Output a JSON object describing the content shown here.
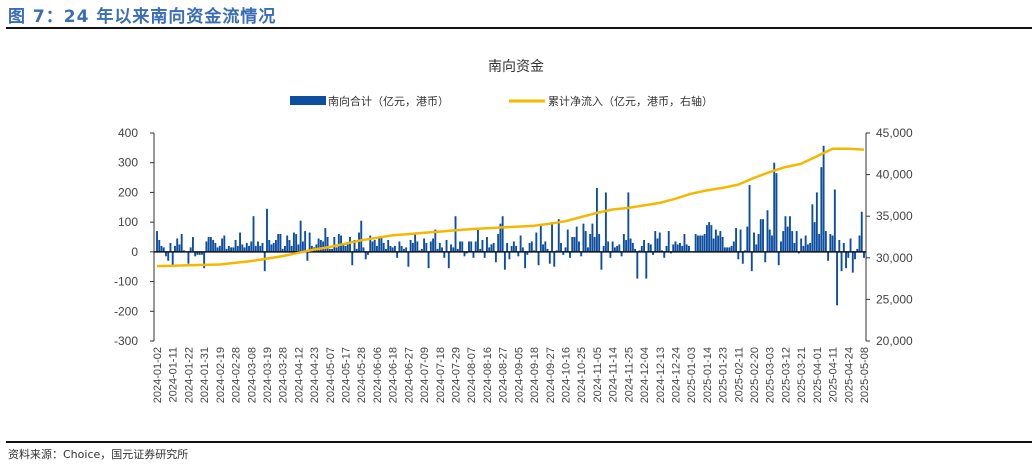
{
  "figure_title": "图 7：24 年以来南向资金流情况",
  "source": "资料来源：Choice，国元证券研究所",
  "chart_data": {
    "type": "bar+line",
    "title": "南向资金",
    "colors": {
      "bars": "#0d4ea0",
      "line": "#f5b800"
    },
    "legend_position": "top",
    "grid": false,
    "y_left": {
      "ylim": [
        -300,
        400
      ],
      "ticks": [
        "400",
        "300",
        "200",
        "100",
        "0",
        "-100",
        "-200",
        "-300"
      ],
      "tick_values": [
        400,
        300,
        200,
        100,
        0,
        -100,
        -200,
        -300
      ]
    },
    "y_right": {
      "ylim": [
        20000,
        45000
      ],
      "ticks": [
        "45,000",
        "40,000",
        "35,000",
        "30,000",
        "25,000",
        "20,000"
      ],
      "tick_values": [
        45000,
        40000,
        35000,
        30000,
        25000,
        20000
      ]
    },
    "x_tick_labels": [
      "2024-01-02",
      "2024-01-11",
      "2024-01-22",
      "2024-01-31",
      "2024-02-19",
      "2024-02-28",
      "2024-03-08",
      "2024-03-19",
      "2024-03-28",
      "2024-04-12",
      "2024-04-23",
      "2024-05-07",
      "2024-05-17",
      "2024-05-28",
      "2024-06-06",
      "2024-06-18",
      "2024-06-27",
      "2024-07-09",
      "2024-07-18",
      "2024-07-29",
      "2024-08-07",
      "2024-08-16",
      "2024-08-27",
      "2024-09-05",
      "2024-09-18",
      "2024-09-27",
      "2024-10-16",
      "2024-10-25",
      "2024-11-05",
      "2024-11-14",
      "2024-11-25",
      "2024-12-04",
      "2024-12-13",
      "2024-12-24",
      "2025-01-03",
      "2025-01-14",
      "2025-01-23",
      "2025-02-11",
      "2025-02-20",
      "2025-03-03",
      "2025-03-12",
      "2025-03-21",
      "2025-04-01",
      "2025-04-11",
      "2025-04-24",
      "2025-05-08"
    ],
    "series": [
      {
        "name": "南向合计（亿元，港币）",
        "type": "bar",
        "axis": "left",
        "values": [
          70,
          40,
          20,
          15,
          -15,
          -30,
          30,
          -45,
          20,
          45,
          25,
          60,
          5,
          0,
          -40,
          15,
          50,
          -15,
          -10,
          -10,
          -10,
          -55,
          35,
          50,
          50,
          40,
          30,
          15,
          20,
          45,
          55,
          10,
          20,
          15,
          15,
          40,
          20,
          65,
          25,
          15,
          30,
          20,
          35,
          120,
          20,
          35,
          20,
          30,
          -65,
          145,
          40,
          25,
          30,
          40,
          60,
          60,
          10,
          20,
          55,
          40,
          20,
          65,
          60,
          25,
          105,
          35,
          70,
          -30,
          65,
          20,
          15,
          25,
          45,
          40,
          35,
          80,
          50,
          10,
          10,
          50,
          15,
          60,
          55,
          25,
          20,
          25,
          50,
          -45,
          40,
          10,
          65,
          105,
          15,
          -25,
          -10,
          55,
          35,
          40,
          20,
          50,
          50,
          30,
          10,
          40,
          20,
          15,
          20,
          -20,
          35,
          20,
          10,
          15,
          -50,
          40,
          30,
          60,
          35,
          5,
          10,
          45,
          30,
          -55,
          35,
          45,
          75,
          10,
          30,
          15,
          -20,
          40,
          -55,
          25,
          15,
          120,
          10,
          35,
          35,
          -15,
          -5,
          35,
          35,
          -20,
          35,
          80,
          10,
          40,
          -20,
          50,
          15,
          25,
          30,
          -35,
          60,
          95,
          120,
          -60,
          30,
          -25,
          20,
          35,
          20,
          -15,
          55,
          15,
          -55,
          -10,
          30,
          35,
          5,
          65,
          -45,
          90,
          25,
          35,
          10,
          -40,
          100,
          -50,
          5,
          110,
          30,
          -10,
          15,
          75,
          -20,
          50,
          50,
          85,
          35,
          -15,
          95,
          70,
          15,
          60,
          95,
          50,
          215,
          60,
          -60,
          20,
          200,
          35,
          -20,
          35,
          15,
          20,
          25,
          -15,
          60,
          40,
          200,
          45,
          30,
          10,
          -90,
          5,
          20,
          40,
          -90,
          30,
          25,
          -10,
          70,
          45,
          65,
          5,
          -20,
          20,
          70,
          -5,
          25,
          35,
          25,
          30,
          20,
          60,
          25,
          20,
          0,
          0,
          60,
          55,
          55,
          55,
          60,
          90,
          100,
          90,
          45,
          75,
          55,
          70,
          50,
          15,
          15,
          15,
          20,
          35,
          80,
          -25,
          75,
          -40,
          5,
          85,
          225,
          -65,
          65,
          25,
          60,
          110,
          110,
          -35,
          140,
          75,
          55,
          300,
          265,
          -45,
          35,
          70,
          120,
          85,
          120,
          70,
          30,
          70,
          -5,
          45,
          20,
          55,
          25,
          30,
          160,
          100,
          200,
          60,
          285,
          357,
          70,
          -30,
          60,
          55,
          210,
          -180,
          40,
          -65,
          30,
          -55,
          -20,
          45,
          -70,
          -25,
          10,
          55,
          135,
          -20
        ]
      },
      {
        "name": "累计净流入（亿元，港币，右轴）",
        "type": "line",
        "axis": "right",
        "x": "x_tick_labels",
        "values": [
          29000,
          29050,
          29100,
          29150,
          29200,
          29400,
          29600,
          29900,
          30200,
          30600,
          31000,
          31300,
          31700,
          32100,
          32400,
          32700,
          32850,
          33000,
          33150,
          33300,
          33450,
          33550,
          33650,
          33750,
          33850,
          34100,
          34400,
          34900,
          35400,
          35800,
          36000,
          36300,
          36600,
          37100,
          37700,
          38100,
          38400,
          38800,
          39600,
          40300,
          40900,
          41300,
          42200,
          43100,
          43100,
          43000
        ]
      }
    ]
  }
}
